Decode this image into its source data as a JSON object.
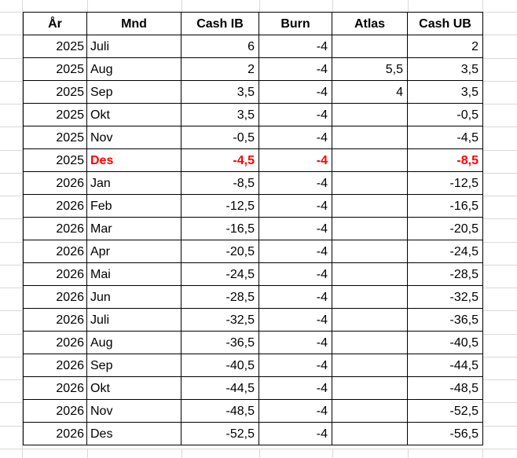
{
  "sheet": {
    "headers": [
      "År",
      "Mnd",
      "Cash IB",
      "Burn",
      "Atlas",
      "Cash UB"
    ],
    "rows": [
      {
        "year": "2025",
        "mnd": "Juli",
        "cash_ib": "6",
        "burn": "-4",
        "atlas": "",
        "cash_ub": "2",
        "highlight": false
      },
      {
        "year": "2025",
        "mnd": "Aug",
        "cash_ib": "2",
        "burn": "-4",
        "atlas": "5,5",
        "cash_ub": "3,5",
        "highlight": false
      },
      {
        "year": "2025",
        "mnd": "Sep",
        "cash_ib": "3,5",
        "burn": "-4",
        "atlas": "4",
        "cash_ub": "3,5",
        "highlight": false
      },
      {
        "year": "2025",
        "mnd": "Okt",
        "cash_ib": "3,5",
        "burn": "-4",
        "atlas": "",
        "cash_ub": "-0,5",
        "highlight": false
      },
      {
        "year": "2025",
        "mnd": "Nov",
        "cash_ib": "-0,5",
        "burn": "-4",
        "atlas": "",
        "cash_ub": "-4,5",
        "highlight": false
      },
      {
        "year": "2025",
        "mnd": "Des",
        "cash_ib": "-4,5",
        "burn": "-4",
        "atlas": "",
        "cash_ub": "-8,5",
        "highlight": true
      },
      {
        "year": "2026",
        "mnd": "Jan",
        "cash_ib": "-8,5",
        "burn": "-4",
        "atlas": "",
        "cash_ub": "-12,5",
        "highlight": false
      },
      {
        "year": "2026",
        "mnd": "Feb",
        "cash_ib": "-12,5",
        "burn": "-4",
        "atlas": "",
        "cash_ub": "-16,5",
        "highlight": false
      },
      {
        "year": "2026",
        "mnd": "Mar",
        "cash_ib": "-16,5",
        "burn": "-4",
        "atlas": "",
        "cash_ub": "-20,5",
        "highlight": false
      },
      {
        "year": "2026",
        "mnd": "Apr",
        "cash_ib": "-20,5",
        "burn": "-4",
        "atlas": "",
        "cash_ub": "-24,5",
        "highlight": false
      },
      {
        "year": "2026",
        "mnd": "Mai",
        "cash_ib": "-24,5",
        "burn": "-4",
        "atlas": "",
        "cash_ub": "-28,5",
        "highlight": false
      },
      {
        "year": "2026",
        "mnd": "Jun",
        "cash_ib": "-28,5",
        "burn": "-4",
        "atlas": "",
        "cash_ub": "-32,5",
        "highlight": false
      },
      {
        "year": "2026",
        "mnd": "Juli",
        "cash_ib": "-32,5",
        "burn": "-4",
        "atlas": "",
        "cash_ub": "-36,5",
        "highlight": false
      },
      {
        "year": "2026",
        "mnd": "Aug",
        "cash_ib": "-36,5",
        "burn": "-4",
        "atlas": "",
        "cash_ub": "-40,5",
        "highlight": false
      },
      {
        "year": "2026",
        "mnd": "Sep",
        "cash_ib": "-40,5",
        "burn": "-4",
        "atlas": "",
        "cash_ub": "-44,5",
        "highlight": false
      },
      {
        "year": "2026",
        "mnd": "Okt",
        "cash_ib": "-44,5",
        "burn": "-4",
        "atlas": "",
        "cash_ub": "-48,5",
        "highlight": false
      },
      {
        "year": "2026",
        "mnd": "Nov",
        "cash_ib": "-48,5",
        "burn": "-4",
        "atlas": "",
        "cash_ub": "-52,5",
        "highlight": false
      },
      {
        "year": "2026",
        "mnd": "Des",
        "cash_ib": "-52,5",
        "burn": "-4",
        "atlas": "",
        "cash_ub": "-56,5",
        "highlight": false
      }
    ],
    "colors": {
      "highlight": "#ff0000",
      "border": "#000000",
      "gridline": "#d8d8d8",
      "text": "#000000",
      "background": "#ffffff"
    }
  }
}
